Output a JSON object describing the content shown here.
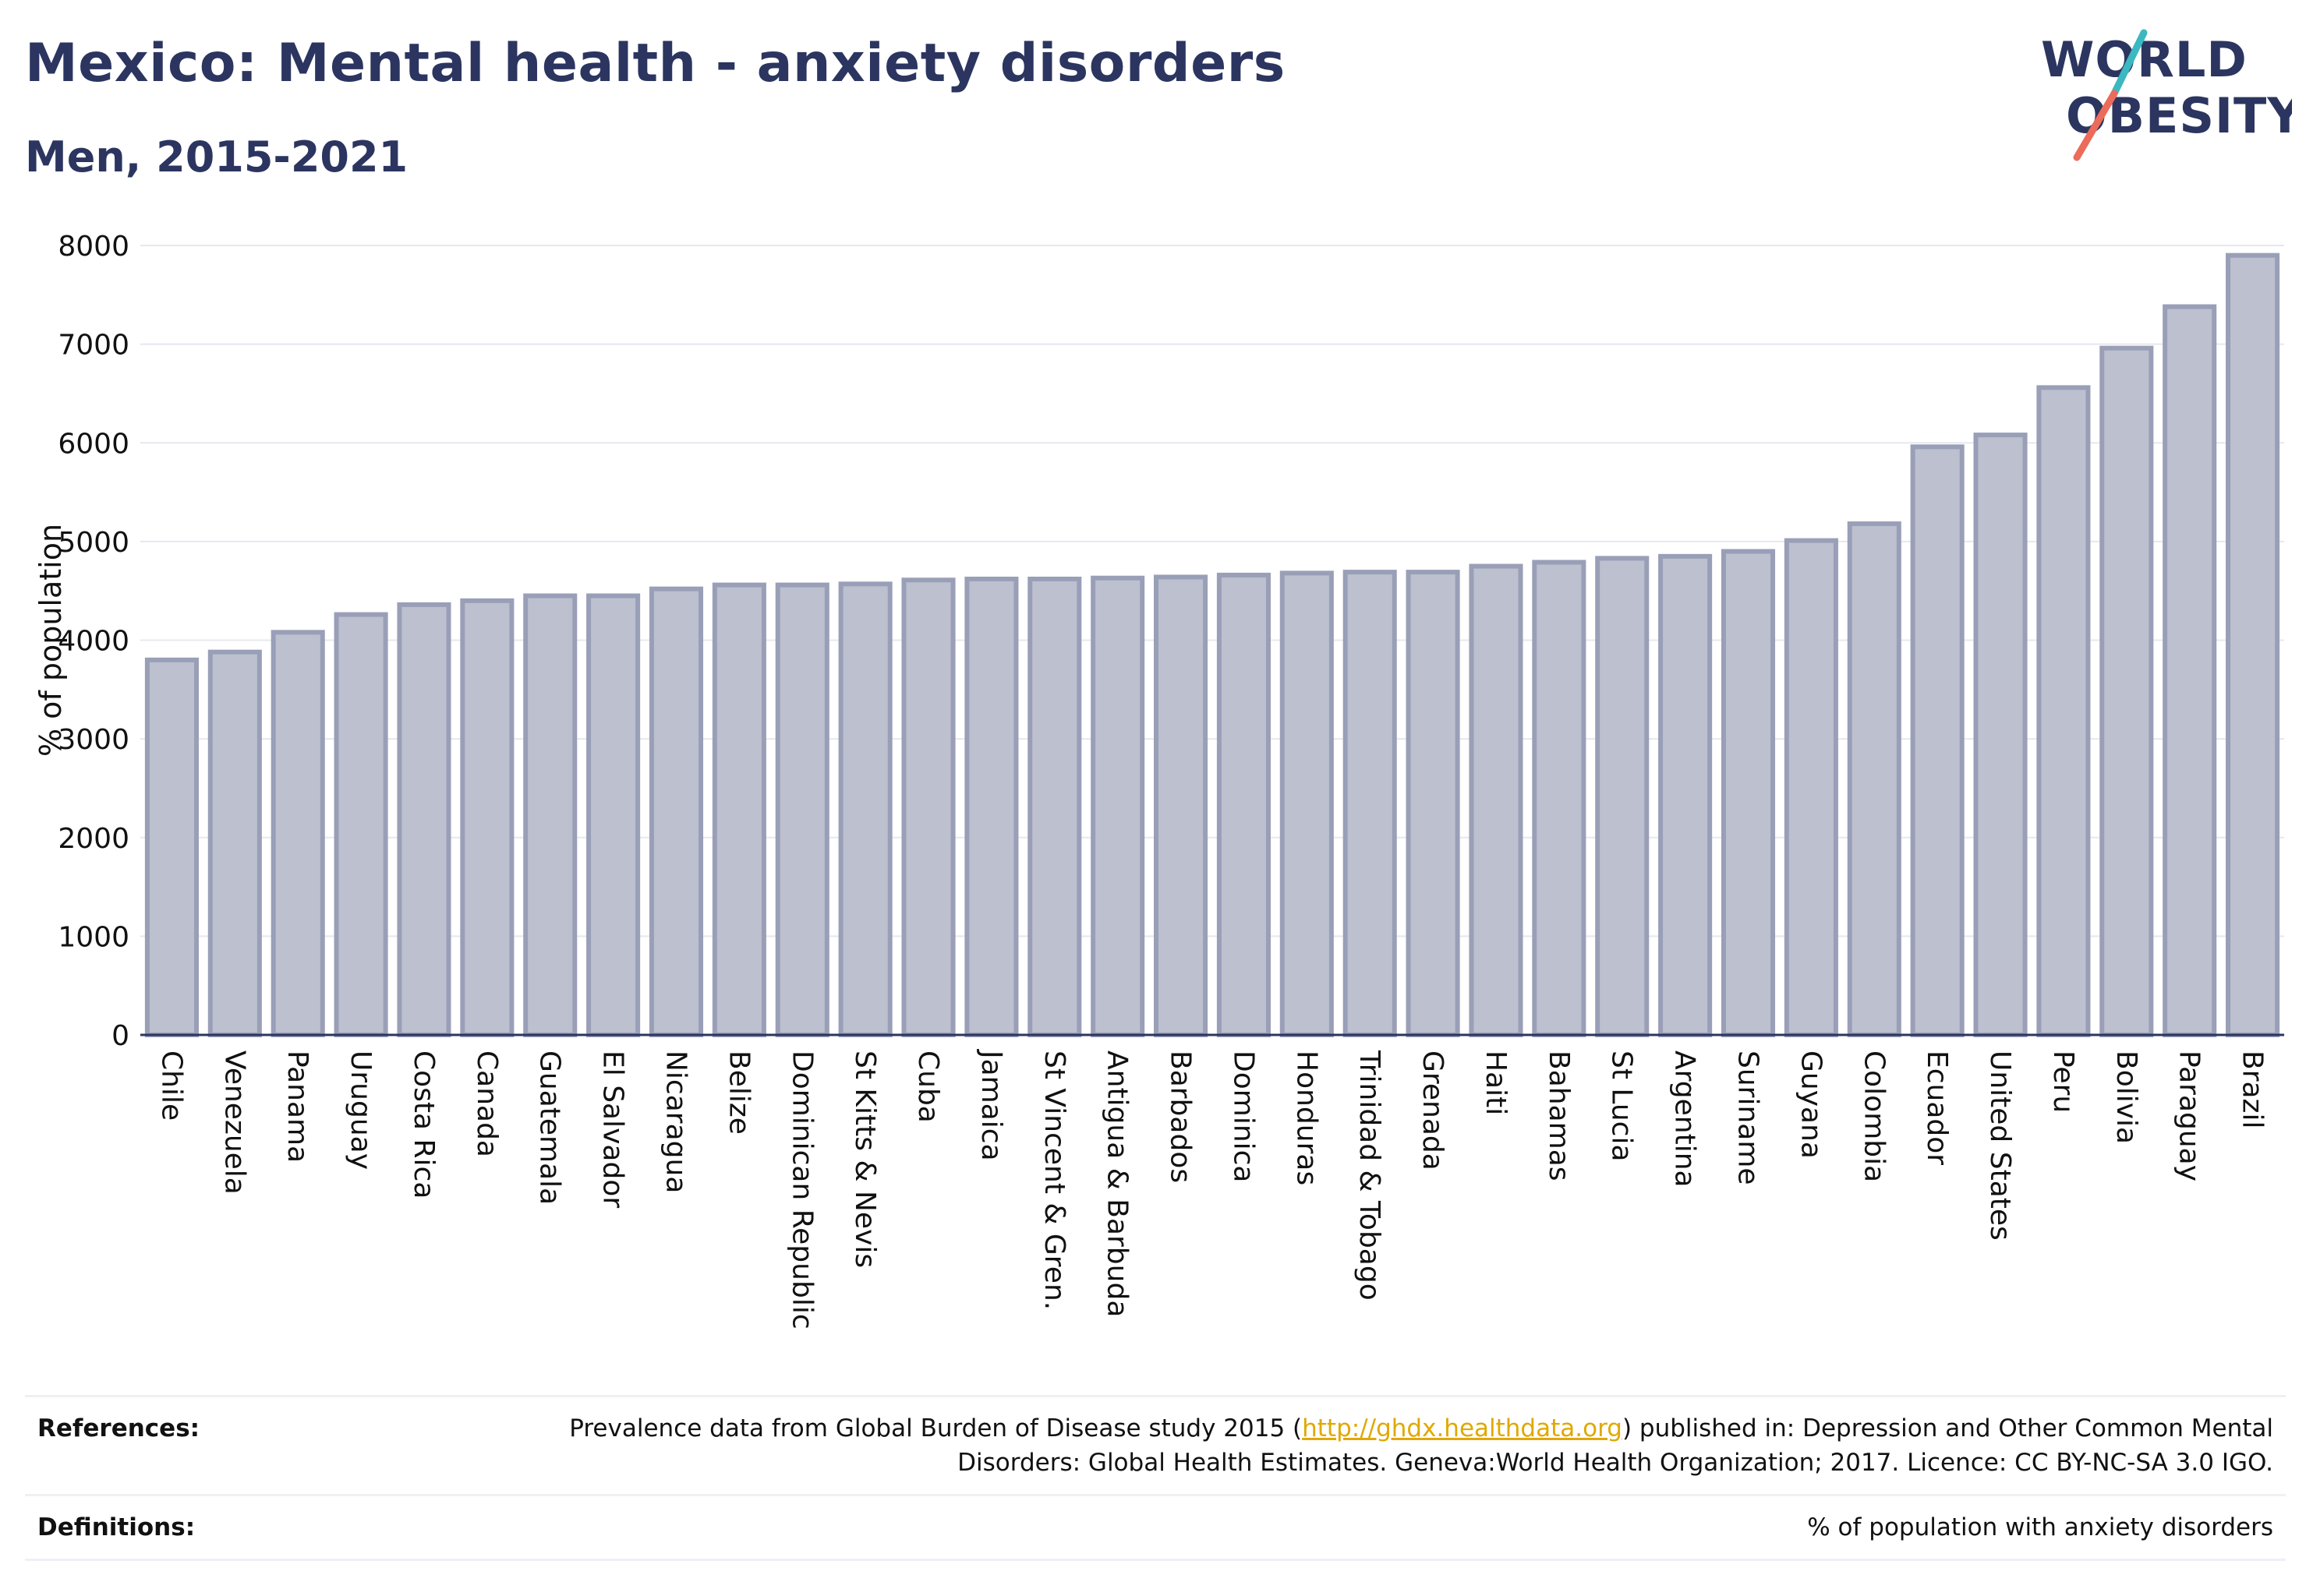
{
  "header": {
    "title": "Mexico: Mental health - anxiety disorders",
    "subtitle": "Men, 2015-2021",
    "logo_line1": "WORLD",
    "logo_line2": "OBESITY"
  },
  "colors": {
    "bar_fill": "#bcc0cf",
    "bar_stroke": "#9a9fb8",
    "title": "#2b3560",
    "link": "#e0a800",
    "logo_navy": "#2b3560",
    "logo_teal": "#3bb8c0",
    "logo_coral": "#ec6b5a"
  },
  "chart_data": {
    "type": "bar",
    "title": "",
    "xlabel": "",
    "ylabel": "% of population",
    "ylim": [
      0,
      8000
    ],
    "yticks": [
      0,
      1000,
      2000,
      3000,
      4000,
      5000,
      6000,
      7000,
      8000
    ],
    "grid": true,
    "categories": [
      "Chile",
      "Venezuela",
      "Panama",
      "Uruguay",
      "Costa Rica",
      "Canada",
      "Guatemala",
      "El Salvador",
      "Nicaragua",
      "Belize",
      "Dominican Republic",
      "St Kitts & Nevis",
      "Cuba",
      "Jamaica",
      "St Vincent & Gren.",
      "Antigua & Barbuda",
      "Barbados",
      "Dominica",
      "Honduras",
      "Trinidad & Tobago",
      "Grenada",
      "Haiti",
      "Bahamas",
      "St Lucia",
      "Argentina",
      "Suriname",
      "Guyana",
      "Colombia",
      "Ecuador",
      "United States",
      "Peru",
      "Bolivia",
      "Paraguay",
      "Brazil"
    ],
    "values": [
      3800,
      3880,
      4080,
      4260,
      4360,
      4400,
      4450,
      4450,
      4520,
      4560,
      4560,
      4570,
      4610,
      4620,
      4620,
      4630,
      4640,
      4660,
      4680,
      4690,
      4690,
      4750,
      4790,
      4830,
      4850,
      4900,
      5010,
      5180,
      5960,
      6080,
      6560,
      6960,
      7380,
      7900
    ]
  },
  "references": {
    "label": "References:",
    "text_before": "Prevalence data from Global Burden of Disease study 2015 (",
    "link": "http://ghdx.healthdata.org",
    "text_after": ") published in: Depression and Other Common Mental Disorders: Global Health Estimates. Geneva:World Health Organization; 2017. Licence: CC BY-NC-SA 3.0 IGO."
  },
  "definitions": {
    "label": "Definitions:",
    "text": "% of population with anxiety disorders"
  }
}
